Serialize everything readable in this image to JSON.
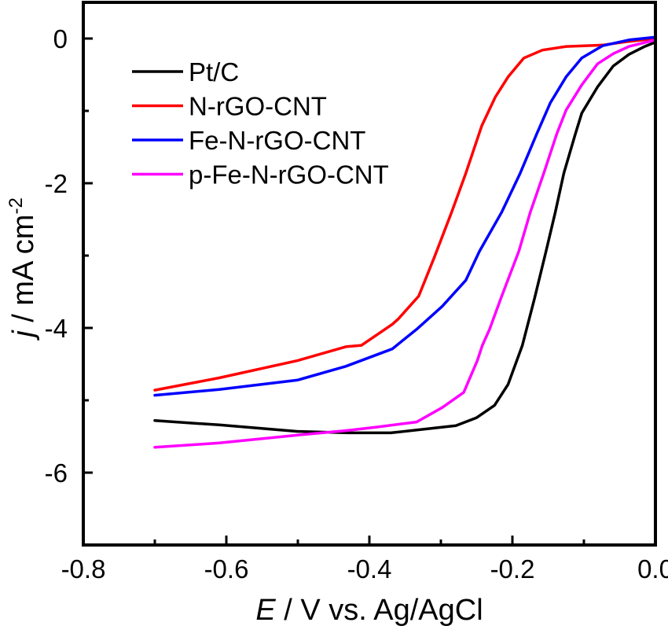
{
  "chart_data": {
    "type": "line",
    "title": "",
    "xlabel": {
      "italic": "E",
      "rest": " / V vs. Ag/AgCl"
    },
    "ylabel": {
      "italic": "j",
      "rest": " / mA cm",
      "sup": "-2"
    },
    "xlim": [
      -0.8,
      0.0
    ],
    "ylim": [
      -7.0,
      0.5
    ],
    "x_ticks": [
      -0.8,
      -0.6,
      -0.4,
      -0.2,
      0.0
    ],
    "x_tick_labels": [
      "-0.8",
      "-0.6",
      "-0.4",
      "-0.2",
      "0.0"
    ],
    "x_minor_ticks": [
      -0.7,
      -0.5,
      -0.3,
      -0.1
    ],
    "y_ticks": [
      0,
      -2,
      -4,
      -6
    ],
    "y_tick_labels": [
      "0",
      "-2",
      "-4",
      "-6"
    ],
    "y_minor_ticks": [
      -1,
      -3,
      -5
    ],
    "grid": false,
    "legend_position": "top-left",
    "series": [
      {
        "name": "Pt/C",
        "color": "#000000",
        "x": [
          -0.7,
          -0.61,
          -0.5,
          -0.43,
          -0.37,
          -0.279,
          -0.25,
          -0.225,
          -0.206,
          -0.186,
          -0.169,
          -0.153,
          -0.14,
          -0.128,
          -0.112,
          -0.103,
          -0.081,
          -0.059,
          -0.037,
          -0.015,
          0.0
        ],
        "y": [
          -5.28,
          -5.34,
          -5.43,
          -5.45,
          -5.45,
          -5.35,
          -5.24,
          -5.07,
          -4.78,
          -4.24,
          -3.59,
          -2.94,
          -2.4,
          -1.86,
          -1.32,
          -1.03,
          -0.67,
          -0.38,
          -0.22,
          -0.11,
          -0.05
        ]
      },
      {
        "name": "N-rGO-CNT",
        "color": "#ff0000",
        "x": [
          -0.7,
          -0.61,
          -0.5,
          -0.433,
          -0.411,
          -0.368,
          -0.36,
          -0.331,
          -0.309,
          -0.285,
          -0.265,
          -0.243,
          -0.224,
          -0.206,
          -0.184,
          -0.158,
          -0.125,
          -0.074,
          -0.037,
          0.0
        ],
        "y": [
          -4.86,
          -4.69,
          -4.45,
          -4.26,
          -4.24,
          -3.95,
          -3.88,
          -3.56,
          -3.02,
          -2.4,
          -1.86,
          -1.21,
          -0.81,
          -0.53,
          -0.27,
          -0.16,
          -0.11,
          -0.09,
          -0.04,
          0.0
        ]
      },
      {
        "name": "Fe-N-rGO-CNT",
        "color": "#0000ff",
        "x": [
          -0.7,
          -0.61,
          -0.5,
          -0.433,
          -0.368,
          -0.334,
          -0.298,
          -0.265,
          -0.246,
          -0.215,
          -0.189,
          -0.166,
          -0.147,
          -0.125,
          -0.103,
          -0.074,
          -0.037,
          0.0
        ],
        "y": [
          -4.93,
          -4.85,
          -4.72,
          -4.53,
          -4.29,
          -4.02,
          -3.7,
          -3.34,
          -2.94,
          -2.4,
          -1.86,
          -1.32,
          -0.89,
          -0.53,
          -0.27,
          -0.1,
          -0.02,
          0.02
        ]
      },
      {
        "name": "p-Fe-N-rGO-CNT",
        "color": "#ff00ff",
        "x": [
          -0.7,
          -0.61,
          -0.5,
          -0.433,
          -0.389,
          -0.334,
          -0.298,
          -0.268,
          -0.249,
          -0.242,
          -0.232,
          -0.216,
          -0.191,
          -0.175,
          -0.156,
          -0.138,
          -0.125,
          -0.103,
          -0.081,
          -0.059,
          -0.037,
          0.0
        ],
        "y": [
          -5.65,
          -5.59,
          -5.48,
          -5.42,
          -5.37,
          -5.3,
          -5.1,
          -4.89,
          -4.45,
          -4.24,
          -4.02,
          -3.59,
          -2.94,
          -2.4,
          -1.86,
          -1.32,
          -0.99,
          -0.64,
          -0.35,
          -0.21,
          -0.11,
          -0.02
        ]
      }
    ]
  }
}
